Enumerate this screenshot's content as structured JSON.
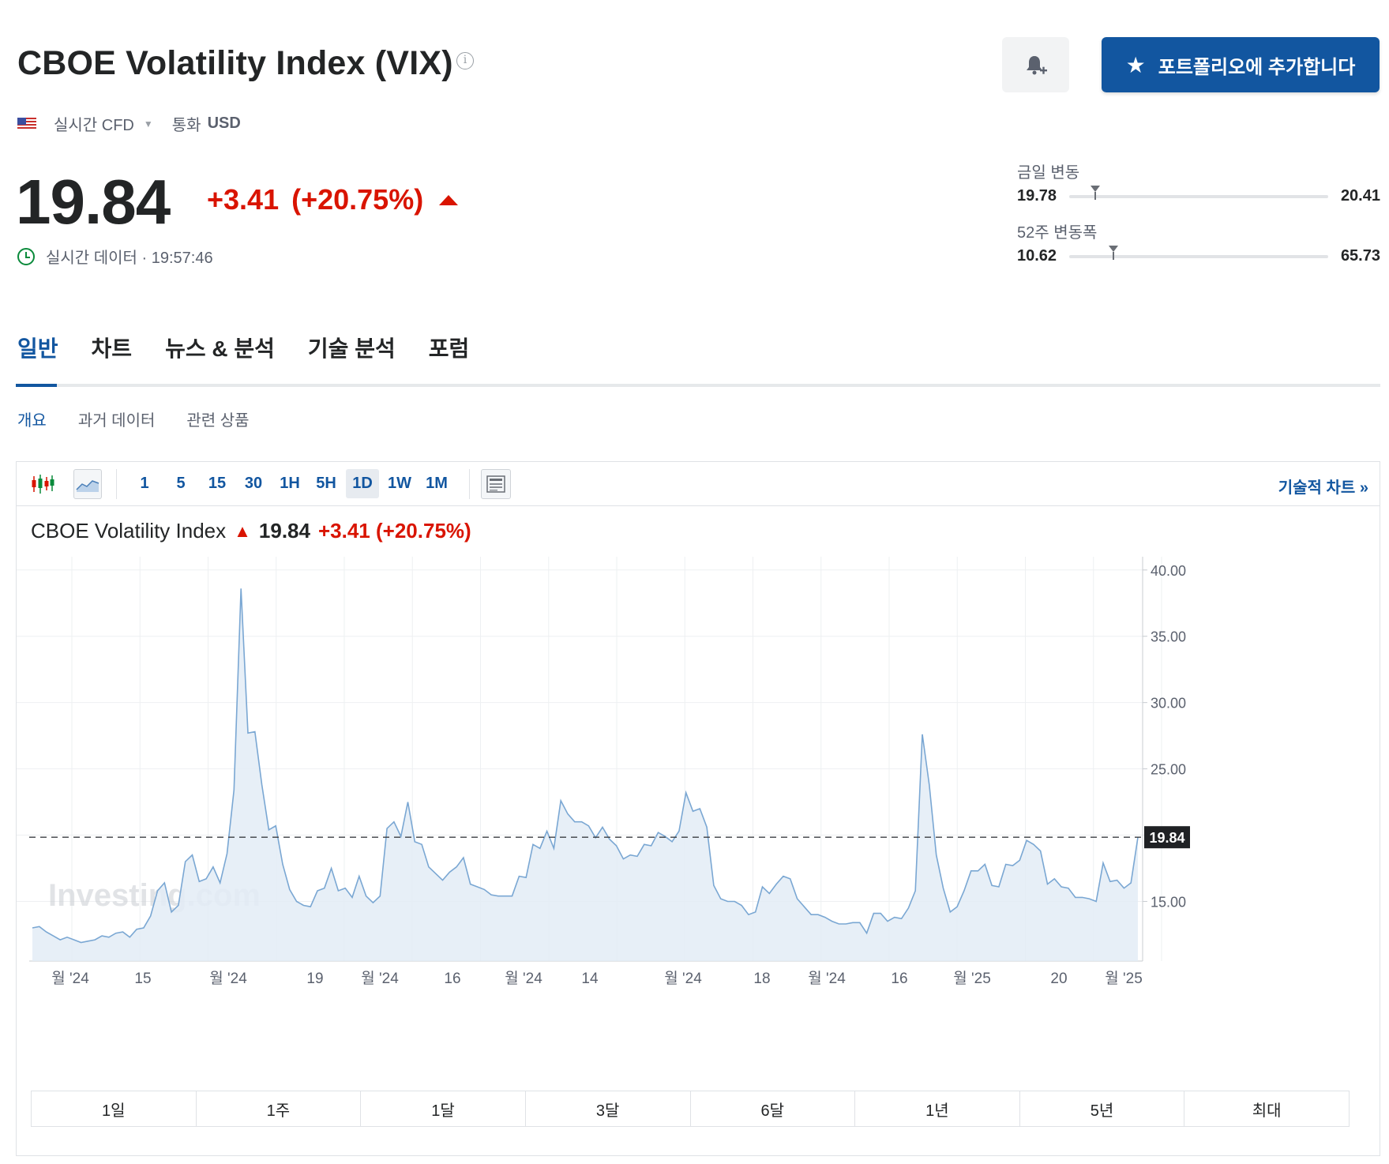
{
  "header": {
    "title": "CBOE Volatility Index (VIX)",
    "info_icon": "i",
    "alert_icon": "bell-plus-icon",
    "portfolio_button": "포트폴리오에 추가합니다",
    "portfolio_icon": "★"
  },
  "meta": {
    "flag": "us-flag-icon",
    "market_type": "실시간 CFD",
    "currency_label": "통화",
    "currency_value": "USD"
  },
  "quote": {
    "price": "19.84",
    "change": "+3.41",
    "change_pct": "(+20.75%)",
    "realtime_label": "실시간 데이터 · 19:57:46"
  },
  "ranges": {
    "day": {
      "label": "금일 변동",
      "low": "19.78",
      "high": "20.41",
      "current_fraction": 0.1
    },
    "year": {
      "label": "52주 변동폭",
      "low": "10.62",
      "high": "65.73",
      "current_fraction": 0.17
    }
  },
  "tabs": [
    "일반",
    "차트",
    "뉴스 & 분석",
    "기술 분석",
    "포럼"
  ],
  "sub_tabs": [
    "개요",
    "과거 데이터",
    "관련 상품"
  ],
  "toolbar": {
    "intervals": [
      "1",
      "5",
      "15",
      "30",
      "1H",
      "5H",
      "1D",
      "1W",
      "1M"
    ],
    "active_interval": "1D",
    "tech_chart_link": "기술적 차트 »"
  },
  "chart_caption": {
    "name": "CBOE Volatility Index",
    "price": "19.84",
    "change": "+3.41 (+20.75%)"
  },
  "range_buttons": [
    "1일",
    "1주",
    "1달",
    "3달",
    "6달",
    "1년",
    "5년",
    "최대"
  ],
  "colors": {
    "accent": "#1256a0",
    "negative_up": "#d91400",
    "line": "#7aa7d3",
    "area": "#e3ecf6"
  },
  "chart_data": {
    "type": "area",
    "watermark": "Investing.com",
    "ylim": [
      10.5,
      41
    ],
    "yticks": [
      "40.00",
      "35.00",
      "30.00",
      "25.00",
      "15.00"
    ],
    "current_value": "19.84",
    "xticks": [
      "월 '24",
      "15",
      "월 '24",
      "19",
      "월 '24",
      "16",
      "월 '24",
      "14",
      "월 '24",
      "18",
      "월 '24",
      "16",
      "월 '25",
      "20",
      "월 '25"
    ],
    "values": [
      13.0,
      13.1,
      12.7,
      12.4,
      12.1,
      12.3,
      12.1,
      11.9,
      12.0,
      12.1,
      12.4,
      12.3,
      12.6,
      12.7,
      12.3,
      12.9,
      13.0,
      13.9,
      15.8,
      16.4,
      14.2,
      14.7,
      18.0,
      18.5,
      16.5,
      16.7,
      17.6,
      16.4,
      18.6,
      23.4,
      38.6,
      27.7,
      27.8,
      23.8,
      20.4,
      20.7,
      17.8,
      15.9,
      15.0,
      14.7,
      14.6,
      15.8,
      16.0,
      17.5,
      15.8,
      16.0,
      15.3,
      16.9,
      15.4,
      14.9,
      15.4,
      20.5,
      21.0,
      19.9,
      22.5,
      19.5,
      19.3,
      17.6,
      17.1,
      16.6,
      17.2,
      17.6,
      18.3,
      16.3,
      16.1,
      15.9,
      15.5,
      15.4,
      15.4,
      15.4,
      16.9,
      16.8,
      19.3,
      19.0,
      20.3,
      19.0,
      22.6,
      21.6,
      21.0,
      21.0,
      20.7,
      19.8,
      20.6,
      19.7,
      19.2,
      18.2,
      18.5,
      18.4,
      19.3,
      19.2,
      20.2,
      19.9,
      19.5,
      20.3,
      23.2,
      21.8,
      22.0,
      20.6,
      16.2,
      15.2,
      15.0,
      15.0,
      14.7,
      14.0,
      14.2,
      16.1,
      15.6,
      16.3,
      16.9,
      16.7,
      15.2,
      14.6,
      14.0,
      14.0,
      13.8,
      13.5,
      13.3,
      13.3,
      13.4,
      13.4,
      12.6,
      14.1,
      14.1,
      13.5,
      13.8,
      13.7,
      14.5,
      15.8,
      27.6,
      23.8,
      18.5,
      16.0,
      14.2,
      14.6,
      15.8,
      17.3,
      17.3,
      17.8,
      16.2,
      16.1,
      17.8,
      17.7,
      18.1,
      19.6,
      19.3,
      18.8,
      16.3,
      16.7,
      16.1,
      16.0,
      15.3,
      15.3,
      15.2,
      15.0,
      17.9,
      16.5,
      16.6,
      16.0,
      16.4,
      19.84
    ]
  }
}
